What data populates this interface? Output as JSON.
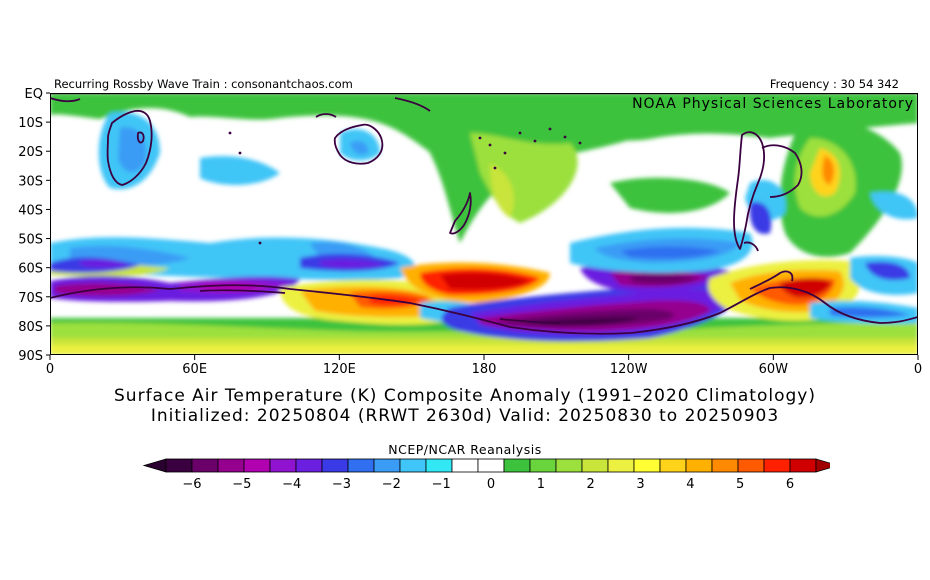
{
  "header": {
    "left_text": "Recurring Rossby Wave Train : consonantchaos.com",
    "right_text": "Frequency : 30 54 342",
    "org_label": "NOAA Physical Sciences Laboratory"
  },
  "titles": {
    "line1": "Surface Air Temperature (K) Composite Anomaly (1991–2020 Climatology)",
    "line2": "Initialized: 20250804 (RRWT 2630d) Valid: 20250830 to 20250903"
  },
  "chart_data": {
    "type": "heatmap",
    "title": "Surface Air Temperature (K) Composite Anomaly (1991–2020 Climatology)",
    "subtitle": "Initialized: 20250804 (RRWT 2630d) Valid: 20250830 to 20250903",
    "lat_ticks": [
      "EQ",
      "10S",
      "20S",
      "30S",
      "40S",
      "50S",
      "60S",
      "70S",
      "80S",
      "90S"
    ],
    "lat_values": [
      0,
      -10,
      -20,
      -30,
      -40,
      -50,
      -60,
      -70,
      -80,
      -90
    ],
    "lon_ticks": [
      "0",
      "60E",
      "120E",
      "180",
      "120W",
      "60W",
      "0"
    ],
    "lon_values": [
      0,
      60,
      120,
      180,
      240,
      300,
      360
    ],
    "xlim": [
      0,
      360
    ],
    "ylim": [
      -90,
      0
    ],
    "colorbar": {
      "source": "NCEP/NCAR Reanalysis",
      "tick_labels": [
        "−6",
        "−5",
        "−4",
        "−3",
        "−2",
        "−1",
        "0",
        "1",
        "2",
        "3",
        "4",
        "5",
        "6"
      ],
      "tick_values": [
        -6,
        -5,
        -4,
        -3,
        -2,
        -1,
        0,
        1,
        2,
        3,
        4,
        5,
        6
      ],
      "colors": [
        "#3b0040",
        "#6b006b",
        "#96008f",
        "#b000b0",
        "#8f13cf",
        "#6b1fe0",
        "#3a3ae6",
        "#2f6ff0",
        "#3a9cf5",
        "#3fc5f7",
        "#33e8f5",
        "#ffffff",
        "#ffffff",
        "#3cc23c",
        "#6ad43c",
        "#9be03c",
        "#c9e43a",
        "#ecf041",
        "#ffff33",
        "#ffd31a",
        "#ffb000",
        "#ff8a00",
        "#ff5a00",
        "#ff2000",
        "#d10000"
      ],
      "under_color": "#2a0030",
      "over_color": "#a00000"
    },
    "anomaly_features": [
      {
        "lon": 75,
        "lat": -70,
        "value": -3.5
      },
      {
        "lon": 20,
        "lat": -70,
        "value": -3
      },
      {
        "lon": 160,
        "lat": -73,
        "value": 4.5
      },
      {
        "lon": 180,
        "lat": -66,
        "value": 6
      },
      {
        "lon": 210,
        "lat": -82,
        "value": -6
      },
      {
        "lon": 245,
        "lat": -70,
        "value": -5
      },
      {
        "lon": 300,
        "lat": -68,
        "value": 5
      },
      {
        "lon": 305,
        "lat": -25,
        "value": 4
      },
      {
        "lon": 25,
        "lat": -25,
        "value": -2
      }
    ]
  }
}
